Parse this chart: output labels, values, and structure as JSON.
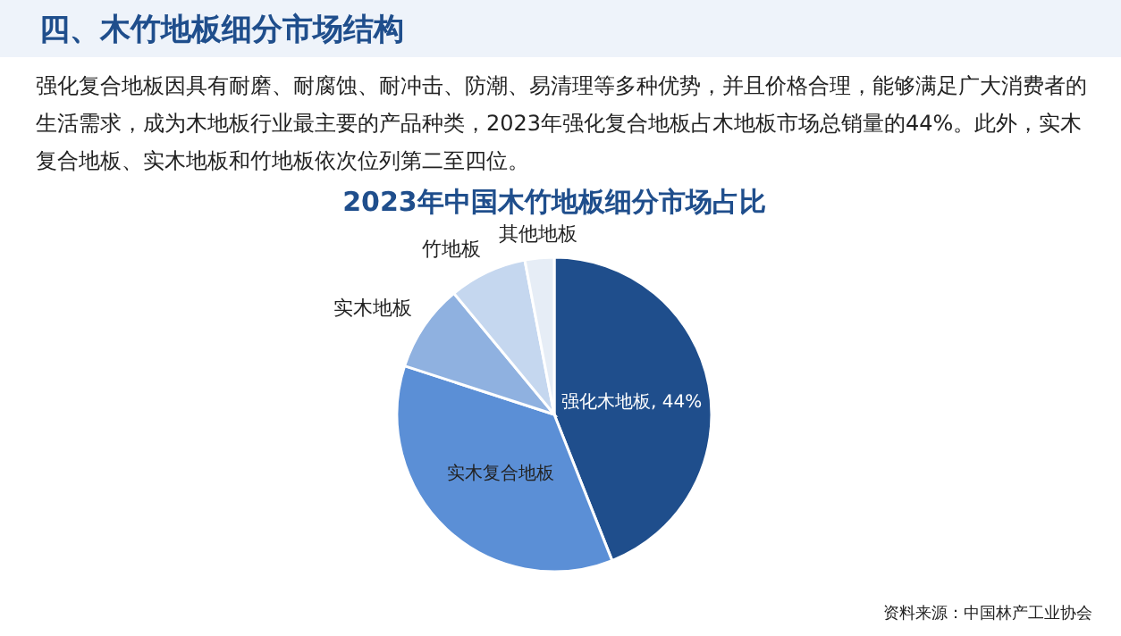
{
  "chart_data": {
    "type": "pie",
    "title": "2023年中国木竹地板细分市场占比",
    "categories": [
      "强化木地板",
      "实木复合地板",
      "实木地板",
      "竹地板",
      "其他地板"
    ],
    "values": [
      44,
      36,
      9,
      8,
      3
    ],
    "value_labels": [
      "44%",
      null,
      null,
      null,
      null
    ],
    "colors": [
      "#1f4e8c",
      "#5b8fd6",
      "#8fb1e0",
      "#c5d7ef",
      "#e6edf6"
    ],
    "annotations": [
      "四、木竹地板细分市场结构",
      "强化复合地板因具有耐磨、耐腐蚀、耐冲击、防潮、易清理等多种优势，并且价格合理，能够满足广大消费者的生活需求，成为木地板行业最主要的产品种类，2023年强化复合地板占木地板市场总销量的44%。此外，实木复合地板、实木地板和竹地板依次位列第二至四位。",
      "资料来源：中国林产工业协会"
    ]
  }
}
